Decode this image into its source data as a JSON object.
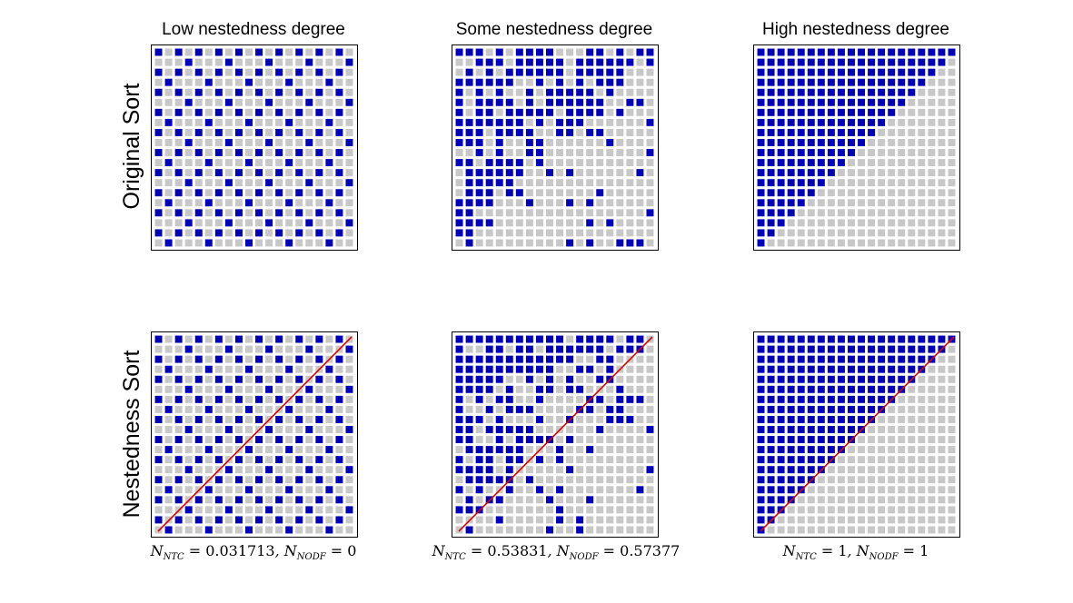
{
  "chart_data": {
    "type": "heatmap",
    "grid_size": 20,
    "columns": [
      {
        "key": "low",
        "title": "Low nestedness degree",
        "metric": {
          "ntc": "0.031713",
          "nodf": "0"
        },
        "original_rule": "checker",
        "nested_rule": "checker",
        "has_diagonal": true
      },
      {
        "key": "some",
        "title": "Some nestedness degree",
        "metric": {
          "ntc": "0.53831",
          "nodf": "0.57377"
        },
        "original_rule": "noisy-nested",
        "nested_rule": "noisy-nested-sorted",
        "has_diagonal": true
      },
      {
        "key": "high",
        "title": "High nestedness degree",
        "metric": {
          "ntc": "1",
          "nodf": "1"
        },
        "original_rule": "perfect-nested",
        "nested_rule": "perfect-nested",
        "has_diagonal": true
      }
    ],
    "rows": [
      {
        "key": "original",
        "label": "Original Sort"
      },
      {
        "key": "nested",
        "label": "Nestedness Sort"
      }
    ],
    "colors": {
      "present": "#0000b8",
      "absent": "#c8c8c8",
      "diagonal": "#e00000"
    },
    "grid": false,
    "legend": "none"
  }
}
